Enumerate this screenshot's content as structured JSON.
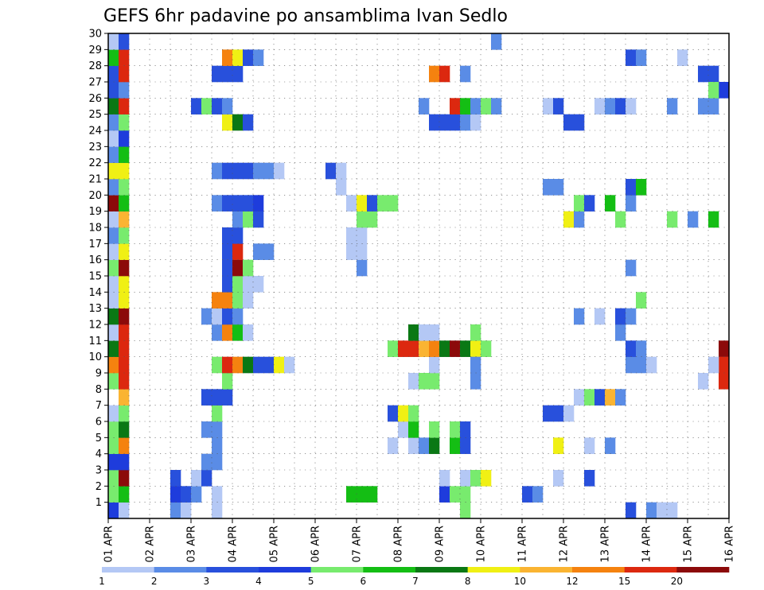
{
  "chart_data": {
    "type": "heatmap",
    "title": "GEFS 6hr padavine po ansamblima Ivan Sedlo",
    "xlabel": "",
    "ylabel": "",
    "x_ticks": [
      "01 APR",
      "02 APR",
      "03 APR",
      "04 APR",
      "05 APR",
      "06 APR",
      "07 APR",
      "08 APR",
      "09 APR",
      "10 APR",
      "11 APR",
      "12 APR",
      "13 APR",
      "14 APR",
      "15 APR",
      "16 APR"
    ],
    "y_ticks": [
      "1",
      "2",
      "3",
      "4",
      "5",
      "6",
      "7",
      "8",
      "9",
      "10",
      "11",
      "12",
      "13",
      "14",
      "15",
      "16",
      "17",
      "18",
      "19",
      "20",
      "21",
      "22",
      "23",
      "24",
      "25",
      "26",
      "27",
      "28",
      "29",
      "30"
    ],
    "time_step": "6hr",
    "n_steps": 60,
    "n_members": 30,
    "grid": true,
    "legend": {
      "position": "bottom",
      "labels": [
        "1",
        "2",
        "3",
        "4",
        "5",
        "6",
        "7",
        "8",
        "10",
        "12",
        "15",
        "20"
      ],
      "colors": [
        "#b4c8f5",
        "#5a8ce6",
        "#2850dc",
        "#1e3cdc",
        "#78eb6e",
        "#14be14",
        "#0a7814",
        "#f0f014",
        "#fab432",
        "#f5820f",
        "#dc280f",
        "#8c0a0a"
      ]
    },
    "cells": [
      [
        1,
        0,
        4
      ],
      [
        1,
        1,
        1
      ],
      [
        2,
        0,
        5
      ],
      [
        2,
        1,
        6
      ],
      [
        3,
        0,
        5
      ],
      [
        3,
        1,
        12
      ],
      [
        4,
        0,
        4
      ],
      [
        4,
        1,
        4
      ],
      [
        5,
        0,
        5
      ],
      [
        5,
        1,
        10
      ],
      [
        6,
        0,
        5
      ],
      [
        6,
        1,
        7
      ],
      [
        7,
        0,
        1
      ],
      [
        7,
        1,
        5
      ],
      [
        8,
        1,
        9
      ],
      [
        9,
        0,
        5
      ],
      [
        9,
        1,
        11
      ],
      [
        10,
        0,
        10
      ],
      [
        10,
        1,
        11
      ],
      [
        11,
        0,
        7
      ],
      [
        11,
        1,
        11
      ],
      [
        12,
        0,
        1
      ],
      [
        12,
        1,
        11
      ],
      [
        13,
        0,
        7
      ],
      [
        13,
        1,
        12
      ],
      [
        14,
        0,
        1
      ],
      [
        14,
        1,
        8
      ],
      [
        15,
        0,
        1
      ],
      [
        15,
        1,
        8
      ],
      [
        16,
        0,
        5
      ],
      [
        16,
        1,
        12
      ],
      [
        17,
        0,
        1
      ],
      [
        17,
        1,
        8
      ],
      [
        18,
        0,
        2
      ],
      [
        18,
        1,
        5
      ],
      [
        19,
        0,
        1
      ],
      [
        19,
        1,
        9
      ],
      [
        20,
        0,
        12
      ],
      [
        20,
        1,
        6
      ],
      [
        21,
        0,
        2
      ],
      [
        21,
        1,
        5
      ],
      [
        22,
        0,
        8
      ],
      [
        22,
        1,
        8
      ],
      [
        23,
        0,
        2
      ],
      [
        23,
        1,
        6
      ],
      [
        24,
        0,
        1
      ],
      [
        24,
        1,
        4
      ],
      [
        25,
        0,
        2
      ],
      [
        25,
        1,
        5
      ],
      [
        26,
        0,
        7
      ],
      [
        26,
        1,
        11
      ],
      [
        27,
        0,
        3
      ],
      [
        27,
        1,
        2
      ],
      [
        28,
        0,
        3
      ],
      [
        28,
        1,
        11
      ],
      [
        29,
        0,
        6
      ],
      [
        29,
        1,
        11
      ],
      [
        30,
        0,
        1
      ],
      [
        30,
        1,
        3
      ],
      [
        1,
        6,
        2
      ],
      [
        1,
        7,
        1
      ],
      [
        2,
        6,
        4
      ],
      [
        2,
        7,
        3
      ],
      [
        2,
        8,
        2
      ],
      [
        3,
        6,
        3
      ],
      [
        3,
        8,
        1
      ],
      [
        3,
        9,
        3
      ],
      [
        1,
        10,
        1
      ],
      [
        2,
        10,
        1
      ],
      [
        4,
        9,
        2
      ],
      [
        4,
        10,
        2
      ],
      [
        5,
        10,
        2
      ],
      [
        6,
        9,
        2
      ],
      [
        6,
        10,
        2
      ],
      [
        7,
        10,
        5
      ],
      [
        8,
        9,
        3
      ],
      [
        8,
        10,
        3
      ],
      [
        8,
        11,
        3
      ],
      [
        9,
        11,
        5
      ],
      [
        10,
        10,
        5
      ],
      [
        10,
        11,
        11
      ],
      [
        10,
        12,
        10
      ],
      [
        10,
        13,
        7
      ],
      [
        10,
        14,
        3
      ],
      [
        10,
        15,
        3
      ],
      [
        10,
        16,
        8
      ],
      [
        10,
        17,
        1
      ],
      [
        12,
        10,
        2
      ],
      [
        12,
        11,
        10
      ],
      [
        12,
        12,
        6
      ],
      [
        12,
        13,
        1
      ],
      [
        13,
        9,
        2
      ],
      [
        13,
        10,
        1
      ],
      [
        13,
        11,
        3
      ],
      [
        13,
        12,
        2
      ],
      [
        14,
        10,
        10
      ],
      [
        14,
        11,
        10
      ],
      [
        14,
        12,
        5
      ],
      [
        14,
        13,
        1
      ],
      [
        15,
        11,
        3
      ],
      [
        15,
        12,
        5
      ],
      [
        15,
        13,
        1
      ],
      [
        15,
        14,
        1
      ],
      [
        16,
        11,
        3
      ],
      [
        16,
        12,
        12
      ],
      [
        16,
        13,
        5
      ],
      [
        17,
        11,
        3
      ],
      [
        17,
        12,
        11
      ],
      [
        17,
        14,
        2
      ],
      [
        17,
        15,
        2
      ],
      [
        18,
        11,
        3
      ],
      [
        18,
        12,
        3
      ],
      [
        19,
        12,
        2
      ],
      [
        19,
        13,
        5
      ],
      [
        19,
        14,
        3
      ],
      [
        20,
        10,
        2
      ],
      [
        20,
        11,
        3
      ],
      [
        20,
        12,
        3
      ],
      [
        20,
        13,
        3
      ],
      [
        20,
        14,
        4
      ],
      [
        22,
        10,
        2
      ],
      [
        22,
        11,
        3
      ],
      [
        22,
        12,
        3
      ],
      [
        22,
        13,
        3
      ],
      [
        22,
        14,
        2
      ],
      [
        22,
        15,
        2
      ],
      [
        22,
        16,
        1
      ],
      [
        25,
        11,
        8
      ],
      [
        25,
        12,
        7
      ],
      [
        25,
        13,
        3
      ],
      [
        26,
        8,
        3
      ],
      [
        26,
        9,
        5
      ],
      [
        26,
        10,
        3
      ],
      [
        26,
        11,
        2
      ],
      [
        28,
        10,
        3
      ],
      [
        28,
        11,
        3
      ],
      [
        28,
        12,
        3
      ],
      [
        29,
        11,
        10
      ],
      [
        29,
        12,
        8
      ],
      [
        29,
        13,
        3
      ],
      [
        29,
        14,
        2
      ],
      [
        1,
        34,
        5
      ],
      [
        2,
        32,
        4
      ],
      [
        2,
        33,
        5
      ],
      [
        2,
        34,
        5
      ],
      [
        3,
        35,
        2
      ],
      [
        5,
        27,
        1
      ],
      [
        5,
        29,
        1
      ],
      [
        5,
        30,
        2
      ],
      [
        5,
        31,
        7
      ],
      [
        6,
        28,
        1
      ],
      [
        6,
        29,
        6
      ],
      [
        6,
        31,
        5
      ],
      [
        7,
        27,
        3
      ],
      [
        7,
        28,
        8
      ],
      [
        7,
        29,
        5
      ],
      [
        9,
        29,
        1
      ],
      [
        9,
        30,
        5
      ],
      [
        9,
        31,
        5
      ],
      [
        10,
        31,
        1
      ],
      [
        11,
        27,
        5
      ],
      [
        11,
        28,
        11
      ],
      [
        11,
        29,
        11
      ],
      [
        11,
        30,
        9
      ],
      [
        11,
        31,
        10
      ],
      [
        11,
        32,
        7
      ],
      [
        11,
        33,
        12
      ],
      [
        11,
        34,
        7
      ],
      [
        11,
        35,
        8
      ],
      [
        11,
        36,
        5
      ],
      [
        12,
        29,
        7
      ],
      [
        12,
        30,
        1
      ],
      [
        12,
        31,
        1
      ],
      [
        12,
        35,
        5
      ],
      [
        3,
        32,
        1
      ],
      [
        3,
        34,
        1
      ],
      [
        3,
        35,
        5
      ],
      [
        3,
        36,
        8
      ],
      [
        5,
        33,
        6
      ],
      [
        5,
        34,
        3
      ],
      [
        6,
        33,
        5
      ],
      [
        6,
        34,
        3
      ],
      [
        9,
        35,
        2
      ],
      [
        10,
        35,
        2
      ],
      [
        16,
        24,
        2
      ],
      [
        17,
        23,
        1
      ],
      [
        17,
        24,
        1
      ],
      [
        18,
        23,
        1
      ],
      [
        18,
        24,
        1
      ],
      [
        19,
        24,
        5
      ],
      [
        19,
        25,
        5
      ],
      [
        20,
        23,
        1
      ],
      [
        20,
        24,
        8
      ],
      [
        20,
        25,
        3
      ],
      [
        20,
        26,
        5
      ],
      [
        20,
        27,
        5
      ],
      [
        21,
        22,
        1
      ],
      [
        22,
        21,
        3
      ],
      [
        22,
        22,
        1
      ],
      [
        2,
        23,
        6
      ],
      [
        2,
        24,
        6
      ],
      [
        2,
        25,
        6
      ],
      [
        25,
        31,
        3
      ],
      [
        25,
        32,
        3
      ],
      [
        25,
        33,
        3
      ],
      [
        25,
        34,
        2
      ],
      [
        25,
        35,
        1
      ],
      [
        26,
        30,
        2
      ],
      [
        26,
        33,
        11
      ],
      [
        26,
        34,
        6
      ],
      [
        26,
        35,
        2
      ],
      [
        26,
        36,
        5
      ],
      [
        26,
        37,
        2
      ],
      [
        28,
        31,
        10
      ],
      [
        28,
        32,
        11
      ],
      [
        28,
        34,
        2
      ],
      [
        5,
        43,
        8
      ],
      [
        5,
        46,
        1
      ],
      [
        5,
        48,
        2
      ],
      [
        7,
        42,
        3
      ],
      [
        7,
        43,
        3
      ],
      [
        7,
        44,
        1
      ],
      [
        8,
        45,
        1
      ],
      [
        8,
        46,
        5
      ],
      [
        8,
        47,
        3
      ],
      [
        8,
        48,
        9
      ],
      [
        8,
        49,
        2
      ],
      [
        10,
        50,
        2
      ],
      [
        10,
        51,
        2
      ],
      [
        10,
        52,
        1
      ],
      [
        11,
        50,
        3
      ],
      [
        11,
        51,
        2
      ],
      [
        12,
        49,
        2
      ],
      [
        13,
        45,
        2
      ],
      [
        13,
        47,
        1
      ],
      [
        13,
        49,
        3
      ],
      [
        13,
        50,
        2
      ],
      [
        14,
        51,
        5
      ],
      [
        16,
        50,
        2
      ],
      [
        19,
        44,
        8
      ],
      [
        19,
        45,
        2
      ],
      [
        19,
        49,
        5
      ],
      [
        19,
        54,
        5
      ],
      [
        19,
        56,
        2
      ],
      [
        19,
        58,
        6
      ],
      [
        20,
        45,
        5
      ],
      [
        20,
        46,
        3
      ],
      [
        20,
        48,
        6
      ],
      [
        20,
        50,
        2
      ],
      [
        21,
        42,
        2
      ],
      [
        21,
        43,
        2
      ],
      [
        21,
        50,
        3
      ],
      [
        21,
        51,
        6
      ],
      [
        25,
        44,
        3
      ],
      [
        25,
        45,
        3
      ],
      [
        26,
        42,
        1
      ],
      [
        26,
        43,
        3
      ],
      [
        26,
        47,
        1
      ],
      [
        26,
        48,
        2
      ],
      [
        26,
        49,
        3
      ],
      [
        26,
        50,
        1
      ],
      [
        26,
        54,
        2
      ],
      [
        26,
        57,
        2
      ],
      [
        26,
        58,
        2
      ],
      [
        28,
        57,
        3
      ],
      [
        28,
        58,
        3
      ],
      [
        29,
        50,
        3
      ],
      [
        29,
        51,
        2
      ],
      [
        29,
        55,
        1
      ],
      [
        30,
        37,
        2
      ],
      [
        2,
        40,
        3
      ],
      [
        2,
        41,
        2
      ],
      [
        3,
        43,
        1
      ],
      [
        3,
        46,
        3
      ],
      [
        1,
        50,
        3
      ],
      [
        1,
        52,
        2
      ],
      [
        1,
        53,
        1
      ],
      [
        1,
        54,
        1
      ],
      [
        11,
        59,
        12
      ],
      [
        10,
        59,
        11
      ],
      [
        10,
        58,
        1
      ],
      [
        9,
        57,
        1
      ],
      [
        9,
        59,
        11
      ],
      [
        27,
        59,
        4
      ],
      [
        27,
        58,
        5
      ]
    ]
  }
}
